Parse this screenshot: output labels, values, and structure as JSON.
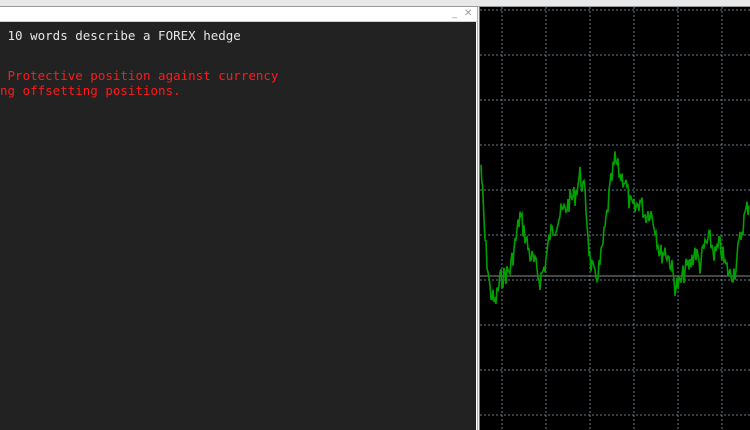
{
  "window": {
    "minimize_icon": "minimize-icon",
    "close_icon": "close-icon"
  },
  "console": {
    "prompt_line": " 10 words describe a FOREX hedge",
    "response_lines": [
      " Protective position against currency",
      "ng offsetting positions."
    ]
  },
  "chart": {
    "background": "#000000",
    "line_color": "#00a000",
    "grid_color": "#6a7a8a",
    "level_line_color": "#8a8a8a",
    "grid": true
  }
}
